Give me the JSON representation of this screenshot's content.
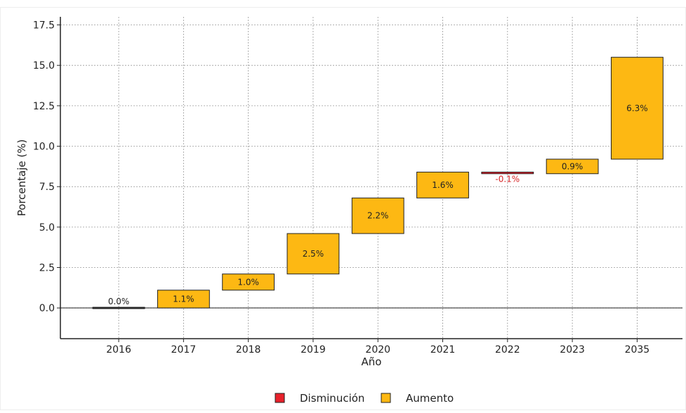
{
  "chart_data": {
    "type": "waterfall",
    "xlabel": "Año",
    "ylabel": "Porcentaje (%)",
    "ylim": [
      -1.9,
      18.0
    ],
    "yticks": [
      "0.0",
      "2.5",
      "5.0",
      "7.5",
      "10.0",
      "12.5",
      "15.0",
      "17.5"
    ],
    "grid": true,
    "categories": [
      "2016",
      "2017",
      "2018",
      "2019",
      "2020",
      "2021",
      "2022",
      "2023",
      "2035"
    ],
    "bars": [
      {
        "start": 0.0,
        "change": 0.0,
        "label": "0.0%",
        "kind": "neutral"
      },
      {
        "start": 0.0,
        "change": 1.1,
        "label": "1.1%",
        "kind": "increase"
      },
      {
        "start": 1.1,
        "change": 1.0,
        "label": "1.0%",
        "kind": "increase"
      },
      {
        "start": 2.1,
        "change": 2.5,
        "label": "2.5%",
        "kind": "increase"
      },
      {
        "start": 4.6,
        "change": 2.2,
        "label": "2.2%",
        "kind": "increase"
      },
      {
        "start": 6.8,
        "change": 1.6,
        "label": "1.6%",
        "kind": "increase"
      },
      {
        "start": 8.4,
        "change": -0.1,
        "label": "-0.1%",
        "kind": "decrease"
      },
      {
        "start": 8.3,
        "change": 0.9,
        "label": "0.9%",
        "kind": "increase"
      },
      {
        "start": 9.2,
        "change": 6.3,
        "label": "6.3%",
        "kind": "increase"
      }
    ],
    "legend": {
      "position": "bottom",
      "entries": [
        {
          "label": "Disminución",
          "kind": "decrease"
        },
        {
          "label": "Aumento",
          "kind": "increase"
        }
      ]
    },
    "colors": {
      "increase": "#FDB813",
      "decrease": "#E8212B",
      "neutral": "#333333",
      "decrease_label": "#D62728",
      "bar_edge": "#222222"
    }
  }
}
